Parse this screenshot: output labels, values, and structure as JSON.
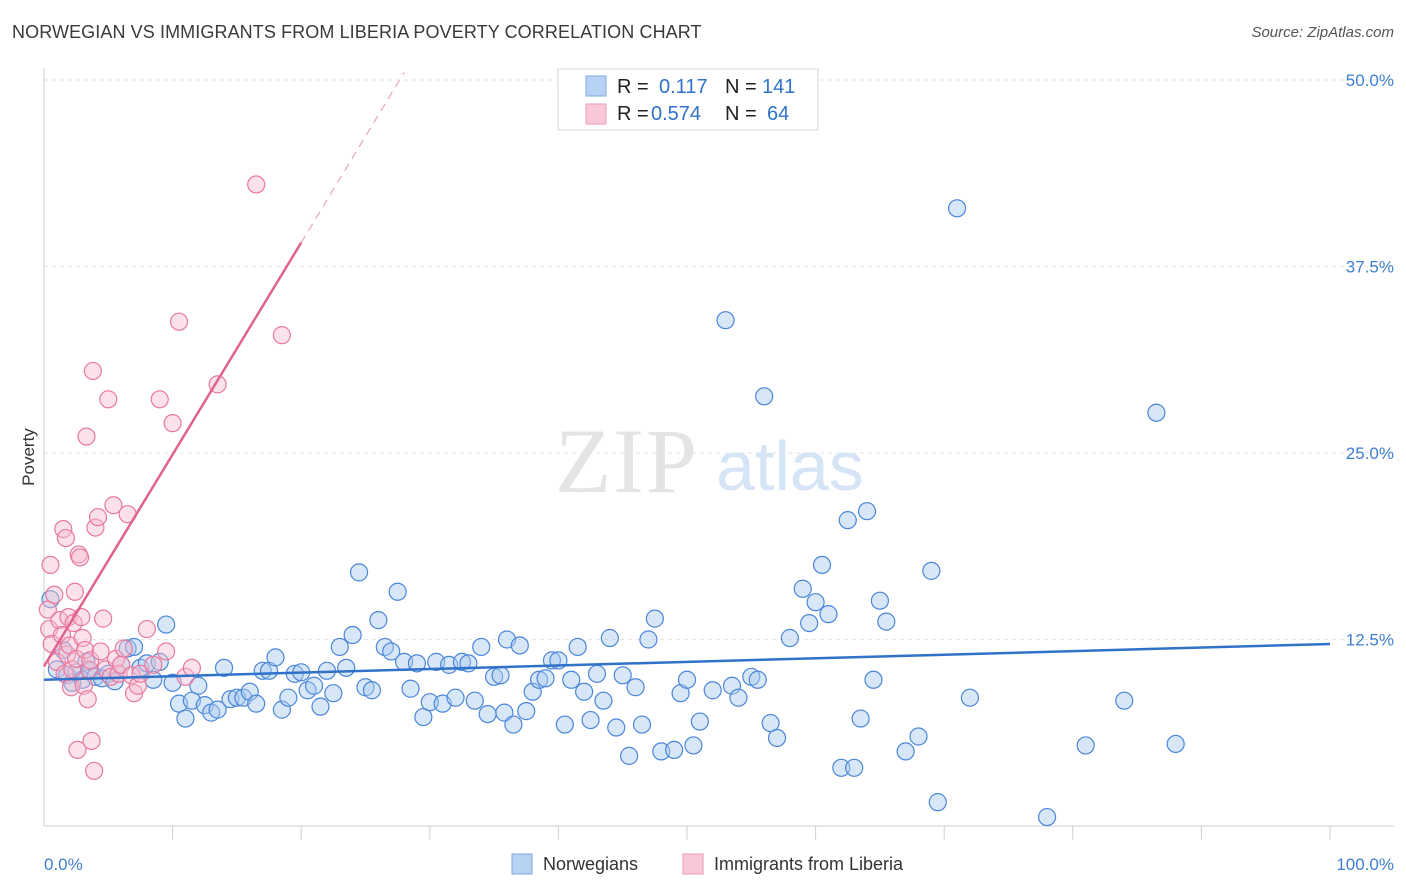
{
  "title": "NORWEGIAN VS IMMIGRANTS FROM LIBERIA POVERTY CORRELATION CHART",
  "source": "Source: ZipAtlas.com",
  "watermark": {
    "zip": "ZIP",
    "atlas": "atlas"
  },
  "legend_top": [
    {
      "r_label": "R =",
      "r_value": "0.117",
      "n_label": "N =",
      "n_value": "141",
      "color": "#8fb8ea"
    },
    {
      "r_label": "R =",
      "r_value": "0.574",
      "n_label": "N =",
      "n_value": "64",
      "color": "#f4a7bf"
    }
  ],
  "legend_bottom": [
    {
      "label": "Norwegians",
      "color": "#8fb8ea"
    },
    {
      "label": "Immigrants from Liberia",
      "color": "#f4a7bf"
    }
  ],
  "chart_data": {
    "type": "scatter",
    "ylabel": "Poverty",
    "xlim": [
      0,
      100
    ],
    "ylim": [
      0,
      50
    ],
    "x_tick_labels": [
      "0.0%",
      "100.0%"
    ],
    "y_tick_labels": [
      "12.5%",
      "25.0%",
      "37.5%",
      "50.0%"
    ],
    "y_ticks": [
      12.5,
      25.0,
      37.5,
      50.0
    ],
    "grid": true,
    "series": [
      {
        "name": "Norwegians",
        "color": "#4a86d8",
        "fill": "#a9c9f0",
        "trend": {
          "x": [
            0,
            100
          ],
          "y": [
            9.8,
            12.2
          ]
        },
        "points": [
          [
            0.5,
            15.2
          ],
          [
            1,
            10.5
          ],
          [
            1.5,
            11.8
          ],
          [
            1.8,
            10.1
          ],
          [
            2.2,
            9.6
          ],
          [
            2.5,
            10.3
          ],
          [
            3,
            9.8
          ],
          [
            3.3,
            11
          ],
          [
            3.6,
            10.4
          ],
          [
            4,
            10
          ],
          [
            4.5,
            9.9
          ],
          [
            5,
            10.2
          ],
          [
            5.5,
            9.7
          ],
          [
            6,
            10.8
          ],
          [
            6.5,
            11.9
          ],
          [
            7,
            12
          ],
          [
            7.5,
            10.6
          ],
          [
            8,
            10.9
          ],
          [
            8.5,
            9.8
          ],
          [
            9,
            11
          ],
          [
            9.5,
            13.5
          ],
          [
            10,
            9.6
          ],
          [
            10.5,
            8.2
          ],
          [
            11,
            7.2
          ],
          [
            11.5,
            8.4
          ],
          [
            12,
            9.4
          ],
          [
            12.5,
            8.1
          ],
          [
            13,
            7.6
          ],
          [
            13.5,
            7.8
          ],
          [
            14,
            10.6
          ],
          [
            14.5,
            8.5
          ],
          [
            15,
            8.6
          ],
          [
            15.5,
            8.6
          ],
          [
            16,
            9
          ],
          [
            16.5,
            8.2
          ],
          [
            17,
            10.4
          ],
          [
            17.5,
            10.4
          ],
          [
            18,
            11.3
          ],
          [
            18.5,
            7.8
          ],
          [
            19,
            8.6
          ],
          [
            19.5,
            10.2
          ],
          [
            20,
            10.3
          ],
          [
            20.5,
            9.1
          ],
          [
            21,
            9.4
          ],
          [
            21.5,
            8
          ],
          [
            22,
            10.4
          ],
          [
            22.5,
            8.9
          ],
          [
            23,
            12
          ],
          [
            23.5,
            10.6
          ],
          [
            24,
            12.8
          ],
          [
            24.5,
            17
          ],
          [
            25,
            9.3
          ],
          [
            25.5,
            9.1
          ],
          [
            26,
            13.8
          ],
          [
            26.5,
            12
          ],
          [
            27,
            11.7
          ],
          [
            27.5,
            15.7
          ],
          [
            28,
            11
          ],
          [
            28.5,
            9.2
          ],
          [
            29,
            10.9
          ],
          [
            29.5,
            7.3
          ],
          [
            30,
            8.3
          ],
          [
            30.5,
            11
          ],
          [
            31,
            8.2
          ],
          [
            31.5,
            10.8
          ],
          [
            32,
            8.6
          ],
          [
            32.5,
            11
          ],
          [
            33,
            10.9
          ],
          [
            33.5,
            8.4
          ],
          [
            34,
            12
          ],
          [
            34.5,
            7.5
          ],
          [
            35,
            10
          ],
          [
            35.5,
            10.1
          ],
          [
            35.8,
            7.6
          ],
          [
            36,
            12.5
          ],
          [
            36.5,
            6.8
          ],
          [
            37,
            12.1
          ],
          [
            37.5,
            7.7
          ],
          [
            38,
            9
          ],
          [
            38.5,
            9.8
          ],
          [
            39,
            9.9
          ],
          [
            39.5,
            11.1
          ],
          [
            40,
            11.1
          ],
          [
            40.5,
            6.8
          ],
          [
            41,
            9.8
          ],
          [
            41.5,
            12
          ],
          [
            42,
            9
          ],
          [
            42.5,
            7.1
          ],
          [
            43,
            10.2
          ],
          [
            43.5,
            8.4
          ],
          [
            44,
            12.6
          ],
          [
            44.5,
            6.6
          ],
          [
            45,
            10.1
          ],
          [
            45.5,
            4.7
          ],
          [
            46,
            9.3
          ],
          [
            46.5,
            6.8
          ],
          [
            47,
            12.5
          ],
          [
            47.5,
            13.9
          ],
          [
            48,
            5
          ],
          [
            49,
            5.1
          ],
          [
            49.5,
            8.9
          ],
          [
            50,
            9.8
          ],
          [
            50.5,
            5.4
          ],
          [
            51,
            7
          ],
          [
            52,
            9.1
          ],
          [
            53,
            33.9
          ],
          [
            53.5,
            9.4
          ],
          [
            54,
            8.6
          ],
          [
            55,
            10
          ],
          [
            55.5,
            9.8
          ],
          [
            56,
            28.8
          ],
          [
            56.5,
            6.9
          ],
          [
            57,
            5.9
          ],
          [
            58,
            12.6
          ],
          [
            59,
            15.9
          ],
          [
            59.5,
            13.6
          ],
          [
            60,
            15
          ],
          [
            60.5,
            17.5
          ],
          [
            61,
            14.2
          ],
          [
            62,
            3.9
          ],
          [
            62.5,
            20.5
          ],
          [
            63,
            3.9
          ],
          [
            63.5,
            7.2
          ],
          [
            64,
            21.1
          ],
          [
            64.5,
            9.8
          ],
          [
            65,
            15.1
          ],
          [
            65.5,
            13.7
          ],
          [
            67,
            5
          ],
          [
            68,
            6
          ],
          [
            69,
            17.1
          ],
          [
            69.5,
            1.6
          ],
          [
            71,
            41.4
          ],
          [
            72,
            8.6
          ],
          [
            78,
            0.6
          ],
          [
            81,
            5.4
          ],
          [
            84,
            8.4
          ],
          [
            86.5,
            27.7
          ],
          [
            88,
            5.5
          ]
        ]
      },
      {
        "name": "Immigrants from Liberia",
        "color": "#e8799f",
        "fill": "#f7bdd0",
        "trend": {
          "x": [
            0,
            20
          ],
          "y": [
            10.7,
            39.1
          ]
        },
        "trend_dashed": {
          "x": [
            20,
            28
          ],
          "y": [
            39.1,
            50.5
          ]
        },
        "points": [
          [
            0.3,
            14.5
          ],
          [
            0.4,
            13.2
          ],
          [
            0.5,
            17.5
          ],
          [
            0.6,
            12.2
          ],
          [
            0.8,
            15.5
          ],
          [
            1,
            11
          ],
          [
            1.2,
            13.8
          ],
          [
            1.4,
            12.8
          ],
          [
            1.5,
            19.9
          ],
          [
            1.6,
            10.2
          ],
          [
            1.7,
            19.3
          ],
          [
            1.8,
            11.5
          ],
          [
            1.9,
            14
          ],
          [
            2,
            12.1
          ],
          [
            2.1,
            9.3
          ],
          [
            2.2,
            10.5
          ],
          [
            2.3,
            13.6
          ],
          [
            2.4,
            15.7
          ],
          [
            2.5,
            11.2
          ],
          [
            2.6,
            5.1
          ],
          [
            2.7,
            18.2
          ],
          [
            2.8,
            18
          ],
          [
            2.9,
            14
          ],
          [
            3,
            12.6
          ],
          [
            3.1,
            9.4
          ],
          [
            3.2,
            11.8
          ],
          [
            3.3,
            26.1
          ],
          [
            3.4,
            8.5
          ],
          [
            3.5,
            10.5
          ],
          [
            3.6,
            11.1
          ],
          [
            3.7,
            5.7
          ],
          [
            3.8,
            30.5
          ],
          [
            3.9,
            3.7
          ],
          [
            4,
            20
          ],
          [
            4.2,
            20.7
          ],
          [
            4.4,
            11.7
          ],
          [
            4.6,
            13.9
          ],
          [
            4.8,
            10.5
          ],
          [
            5,
            28.6
          ],
          [
            5.2,
            10
          ],
          [
            5.4,
            21.5
          ],
          [
            5.6,
            11.2
          ],
          [
            5.8,
            10.2
          ],
          [
            6,
            10.8
          ],
          [
            6.2,
            11.9
          ],
          [
            6.5,
            20.9
          ],
          [
            6.8,
            10.1
          ],
          [
            7,
            8.9
          ],
          [
            7.3,
            9.4
          ],
          [
            7.5,
            10.2
          ],
          [
            8,
            13.2
          ],
          [
            8.5,
            10.8
          ],
          [
            9,
            28.6
          ],
          [
            9.5,
            11.7
          ],
          [
            10,
            27
          ],
          [
            10.5,
            33.8
          ],
          [
            11,
            10
          ],
          [
            11.5,
            10.6
          ],
          [
            13.5,
            29.6
          ],
          [
            16.5,
            43
          ],
          [
            18.5,
            32.9
          ]
        ]
      }
    ]
  }
}
